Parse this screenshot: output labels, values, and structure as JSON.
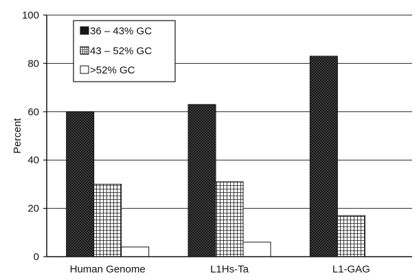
{
  "chart_data": {
    "type": "bar",
    "title": "",
    "xlabel": "",
    "ylabel": "Percent",
    "ylim": [
      0,
      100
    ],
    "yticks": [
      0,
      20,
      40,
      60,
      80,
      100
    ],
    "grid": true,
    "legend_position": "top-left",
    "categories": [
      "Human Genome",
      "L1Hs-Ta",
      "L1-GAG"
    ],
    "series": [
      {
        "name": "36 – 43% GC",
        "values": [
          60,
          63,
          83
        ],
        "pattern": "dense-dots"
      },
      {
        "name": "43 – 52% GC",
        "values": [
          30,
          31,
          17
        ],
        "pattern": "grid"
      },
      {
        "name": ">52% GC",
        "values": [
          4,
          6,
          0
        ],
        "pattern": "white"
      }
    ]
  }
}
